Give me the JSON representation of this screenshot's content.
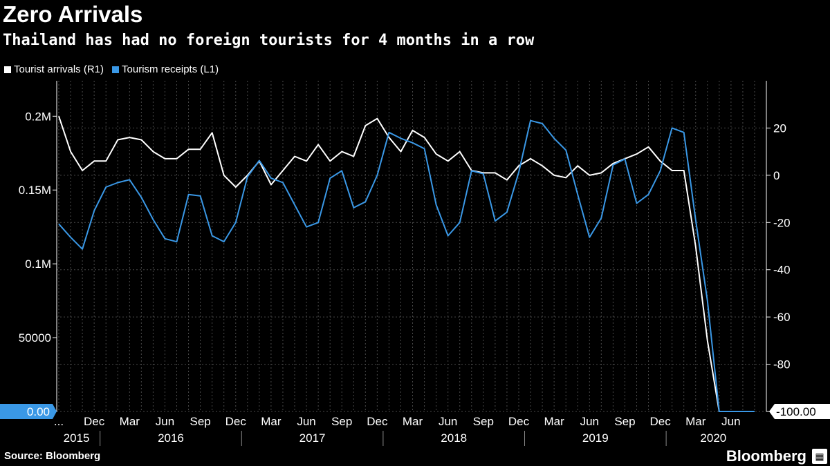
{
  "header": {
    "title": "Zero Arrivals",
    "subtitle": "Thailand has had no foreign tourists for 4 months in a row"
  },
  "footer": {
    "source": "Source: Bloomberg",
    "brand": "Bloomberg"
  },
  "colors": {
    "arrivals": "#ffffff",
    "receipts": "#3a98e6",
    "grid": "#555555"
  },
  "chart_data": {
    "type": "line",
    "x": [
      "2015-09",
      "2015-10",
      "2015-11",
      "2015-12",
      "2016-01",
      "2016-02",
      "2016-03",
      "2016-04",
      "2016-05",
      "2016-06",
      "2016-07",
      "2016-08",
      "2016-09",
      "2016-10",
      "2016-11",
      "2016-12",
      "2017-01",
      "2017-02",
      "2017-03",
      "2017-04",
      "2017-05",
      "2017-06",
      "2017-07",
      "2017-08",
      "2017-09",
      "2017-10",
      "2017-11",
      "2017-12",
      "2018-01",
      "2018-02",
      "2018-03",
      "2018-04",
      "2018-05",
      "2018-06",
      "2018-07",
      "2018-08",
      "2018-09",
      "2018-10",
      "2018-11",
      "2018-12",
      "2019-01",
      "2019-02",
      "2019-03",
      "2019-04",
      "2019-05",
      "2019-06",
      "2019-07",
      "2019-08",
      "2019-09",
      "2019-10",
      "2019-11",
      "2019-12",
      "2020-01",
      "2020-02",
      "2020-03",
      "2020-04",
      "2020-05",
      "2020-06",
      "2020-07",
      "2020-08"
    ],
    "x_ticks": [
      {
        "x": "2015-09",
        "label": "..."
      },
      {
        "x": "2015-12",
        "label": "Dec"
      },
      {
        "x": "2016-03",
        "label": "Mar"
      },
      {
        "x": "2016-06",
        "label": "Jun"
      },
      {
        "x": "2016-09",
        "label": "Sep"
      },
      {
        "x": "2016-12",
        "label": "Dec"
      },
      {
        "x": "2017-03",
        "label": "Mar"
      },
      {
        "x": "2017-06",
        "label": "Jun"
      },
      {
        "x": "2017-09",
        "label": "Sep"
      },
      {
        "x": "2017-12",
        "label": "Dec"
      },
      {
        "x": "2018-03",
        "label": "Mar"
      },
      {
        "x": "2018-06",
        "label": "Jun"
      },
      {
        "x": "2018-09",
        "label": "Sep"
      },
      {
        "x": "2018-12",
        "label": "Dec"
      },
      {
        "x": "2019-03",
        "label": "Mar"
      },
      {
        "x": "2019-06",
        "label": "Jun"
      },
      {
        "x": "2019-09",
        "label": "Sep"
      },
      {
        "x": "2019-12",
        "label": "Dec"
      },
      {
        "x": "2020-03",
        "label": "Mar"
      },
      {
        "x": "2020-06",
        "label": "Jun"
      }
    ],
    "years": [
      {
        "label": "2015",
        "start": "2015-09",
        "end": "2015-12"
      },
      {
        "label": "2016",
        "start": "2016-01",
        "end": "2016-12"
      },
      {
        "label": "2017",
        "start": "2017-01",
        "end": "2017-12"
      },
      {
        "label": "2018",
        "start": "2018-01",
        "end": "2018-12"
      },
      {
        "label": "2019",
        "start": "2019-01",
        "end": "2019-12"
      },
      {
        "label": "2020",
        "start": "2020-01",
        "end": "2020-08"
      }
    ],
    "axes": {
      "left": {
        "min": 0,
        "max": 224000,
        "ticks": [
          {
            "v": 0,
            "label": "0.00"
          },
          {
            "v": 50000,
            "label": "50000"
          },
          {
            "v": 100000,
            "label": "0.1M"
          },
          {
            "v": 150000,
            "label": "0.15M"
          },
          {
            "v": 200000,
            "label": "0.2M"
          }
        ]
      },
      "right": {
        "min": -100,
        "max": 40,
        "ticks": [
          {
            "v": 20,
            "label": "20"
          },
          {
            "v": 0,
            "label": "0"
          },
          {
            "v": -20,
            "label": "-20"
          },
          {
            "v": -40,
            "label": "-40"
          },
          {
            "v": -60,
            "label": "-60"
          },
          {
            "v": -80,
            "label": "-80"
          },
          {
            "v": -100,
            "label": "-100.00"
          }
        ]
      }
    },
    "series": [
      {
        "name": "Tourist arrivals (R1)",
        "axis": "right",
        "color": "#ffffff",
        "values": [
          25,
          10,
          2,
          6,
          6,
          15,
          16,
          15,
          10,
          7,
          7,
          11,
          11,
          18,
          0,
          -5,
          0,
          6,
          -4,
          2,
          8,
          6,
          13,
          6,
          10,
          8,
          21,
          24,
          16,
          10,
          19,
          16,
          9,
          6,
          10,
          2,
          1,
          1,
          -2,
          4,
          7,
          4,
          0,
          -1,
          4,
          0,
          1,
          5,
          7,
          9,
          12,
          6,
          2,
          2,
          -30,
          -70,
          -100,
          -100,
          -100,
          -100
        ]
      },
      {
        "name": "Tourism receipts (L1)",
        "axis": "left",
        "color": "#3a98e6",
        "values": [
          127000,
          118000,
          110000,
          136000,
          152000,
          155000,
          157000,
          145000,
          130000,
          117000,
          115000,
          147000,
          146000,
          119000,
          115000,
          128000,
          159000,
          170000,
          158000,
          155000,
          140000,
          125000,
          128000,
          158000,
          163000,
          138000,
          142000,
          160000,
          189000,
          185000,
          182000,
          178000,
          140000,
          119000,
          128000,
          163000,
          161000,
          129000,
          135000,
          162000,
          197000,
          195000,
          185000,
          177000,
          147000,
          118000,
          131000,
          167000,
          171000,
          141000,
          147000,
          163000,
          192000,
          189000,
          130000,
          75000,
          0,
          0,
          0,
          0
        ]
      }
    ]
  }
}
